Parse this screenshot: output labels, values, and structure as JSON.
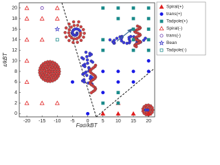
{
  "chart_data": {
    "type": "scatter",
    "xlabel": "Fασ/kBT",
    "ylabel": "ε/kBT",
    "xlim": [
      -22.5,
      22
    ],
    "ylim": [
      -0.6,
      21
    ],
    "xticks": [
      -20,
      -15,
      -10,
      -5,
      0,
      5,
      10,
      15,
      20
    ],
    "yticks": [
      0,
      2,
      4,
      6,
      8,
      10,
      12,
      14,
      16,
      18,
      20
    ],
    "series": [
      {
        "name": "Spiral(+)",
        "color": "#e02020",
        "marker": "triangle",
        "filled": true,
        "x": [
          5,
          10,
          15,
          20,
          10
        ],
        "y": [
          0,
          0,
          0,
          0,
          2
        ]
      },
      {
        "name": "trans(+)",
        "color": "#1a1ae6",
        "marker": "circle",
        "filled": true,
        "x": [
          0,
          -5,
          5,
          5,
          10,
          10,
          15,
          15,
          20,
          20
        ],
        "y": [
          0,
          6,
          4,
          8,
          6,
          8,
          8,
          6,
          10,
          8
        ]
      },
      {
        "name": "Tadpole(+)",
        "color": "#1a8a8a",
        "marker": "square",
        "filled": true,
        "x": [
          5,
          10,
          15,
          20,
          10,
          15,
          20,
          15,
          20,
          15,
          20,
          15,
          20,
          5,
          10,
          5,
          10,
          5
        ],
        "y": [
          20,
          20,
          20,
          20,
          18,
          18,
          18,
          16,
          16,
          14,
          14,
          12,
          12,
          12,
          4,
          2,
          2,
          14
        ]
      },
      {
        "name": "Spiral(-)",
        "color": "#e02020",
        "marker": "triangle",
        "filled": false,
        "x": [
          -20,
          -20,
          -20,
          -20,
          -20,
          -20,
          -15,
          -15,
          -15,
          -10,
          -10,
          -10
        ],
        "y": [
          20,
          18,
          14,
          10,
          6,
          2,
          18,
          14,
          2,
          20,
          18,
          2
        ]
      },
      {
        "name": "trans(-)",
        "color": "#6a3ab0",
        "marker": "circle",
        "filled": false,
        "x": [
          -15
        ],
        "y": [
          20
        ]
      },
      {
        "name": "Bean",
        "color": "#3a3ac8",
        "marker": "star",
        "filled": false,
        "x": [
          -10
        ],
        "y": [
          16
        ]
      },
      {
        "name": "Tadpole(-)",
        "color": "#1a8a8a",
        "marker": "square",
        "filled": false,
        "x": [
          -10
        ],
        "y": [
          14
        ]
      }
    ]
  }
}
